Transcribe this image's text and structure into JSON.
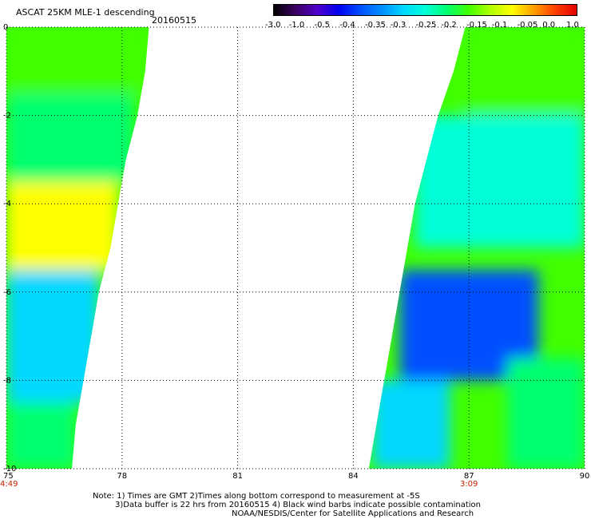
{
  "header": {
    "title": "ASCAT 25KM MLE-1 descending",
    "date": "20160515"
  },
  "colorbar": {
    "labels": [
      "-3.0",
      "-1.0",
      "-0.5",
      "-0.4",
      "-0.35",
      "-0.3",
      "-0.25",
      "-0.2",
      "-0.15",
      "-0.1",
      "-0.05",
      "0.0",
      "1.0"
    ],
    "colors": [
      "#000000",
      "#3a0060",
      "#5200c8",
      "#0000f0",
      "#0050ff",
      "#0090ff",
      "#00d8ff",
      "#00ffd8",
      "#00ff70",
      "#40ff00",
      "#b0ff00",
      "#ffff00",
      "#ffa000",
      "#ff4000",
      "#e00000"
    ]
  },
  "chart_data": {
    "type": "heatmap",
    "x_ticks": [
      "75",
      "78",
      "81",
      "84",
      "87",
      "90"
    ],
    "y_ticks": [
      "0",
      "-2",
      "-4",
      "-6",
      "-8",
      "-10"
    ],
    "xlim": [
      75,
      90
    ],
    "ylim": [
      -10,
      0
    ],
    "grid": true,
    "time_labels": [
      {
        "text": "4:49",
        "x": 75
      },
      {
        "text": "3:09",
        "x": 87
      }
    ],
    "swaths": [
      {
        "lon_min": 75,
        "east_edge": [
          [
            0,
            78.7
          ],
          [
            -1,
            78.6
          ],
          [
            -2,
            78.4
          ],
          [
            -3,
            78.1
          ],
          [
            -4,
            77.9
          ],
          [
            -5,
            77.7
          ],
          [
            -6,
            77.4
          ],
          [
            -7,
            77.2
          ],
          [
            -8,
            77.0
          ],
          [
            -9,
            76.8
          ],
          [
            -10,
            76.7
          ]
        ],
        "regions": [
          {
            "lat": [
              -1.5,
              0
            ],
            "lon": [
              75,
              78.7
            ],
            "value": -0.15
          },
          {
            "lat": [
              -3.5,
              -1.5
            ],
            "lon": [
              75,
              78.3
            ],
            "value": -0.2
          },
          {
            "lat": [
              -5.5,
              -3.5
            ],
            "lon": [
              75,
              77.9
            ],
            "value": -0.1
          },
          {
            "lat": [
              -8.5,
              -5.5
            ],
            "lon": [
              75,
              77.4
            ],
            "value": -0.3
          },
          {
            "lat": [
              -10,
              -8.5
            ],
            "lon": [
              75,
              76.8
            ],
            "value": -0.2
          }
        ]
      },
      {
        "lon_max": 90,
        "west_edge": [
          [
            0,
            86.9
          ],
          [
            -1,
            86.6
          ],
          [
            -2,
            86.2
          ],
          [
            -3,
            85.9
          ],
          [
            -4,
            85.6
          ],
          [
            -5,
            85.4
          ],
          [
            -6,
            85.2
          ],
          [
            -7,
            85.0
          ],
          [
            -8,
            84.8
          ],
          [
            -9,
            84.6
          ],
          [
            -10,
            84.4
          ]
        ],
        "regions": [
          {
            "lat": [
              -2,
              0
            ],
            "lon": [
              86.9,
              90
            ],
            "value": -0.15
          },
          {
            "lat": [
              -5,
              -2
            ],
            "lon": [
              85.6,
              90
            ],
            "value": -0.25
          },
          {
            "lat": [
              -8,
              -5.5
            ],
            "lon": [
              85.2,
              88.8
            ],
            "value": -0.4
          },
          {
            "lat": [
              -10,
              -8
            ],
            "lon": [
              84.5,
              86.5
            ],
            "value": -0.3
          },
          {
            "lat": [
              -10,
              -7.5
            ],
            "lon": [
              88,
              90
            ],
            "value": -0.2
          }
        ]
      }
    ]
  },
  "footer": {
    "line1": "Note: 1) Times are GMT 2)Times along bottom correspond to measurement at -5S",
    "line2": "3)Data buffer is 22 hrs from 20160515 4) Black wind barbs indicate possible contamination",
    "line3": "NOAA/NESDIS/Center for Satellite Applications and Research"
  }
}
